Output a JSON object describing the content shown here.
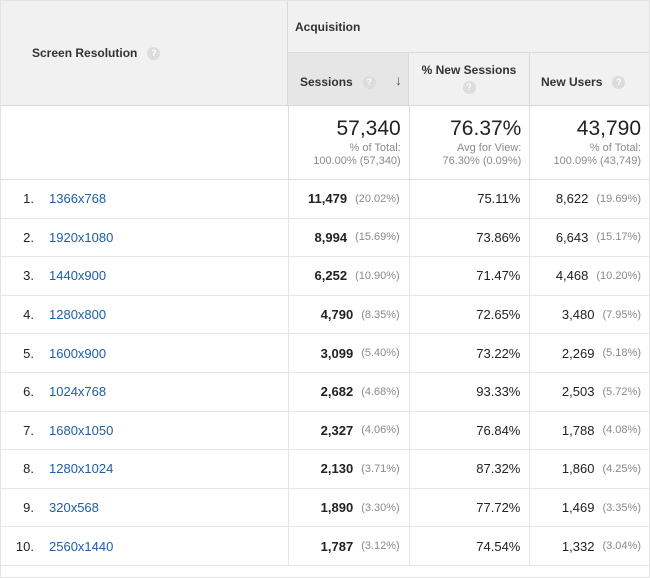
{
  "header": {
    "dimension_label": "Screen Resolution",
    "group_label": "Acquisition",
    "columns": {
      "sessions": "Sessions",
      "new_sessions": "% New Sessions",
      "new_users": "New Users"
    },
    "help_glyph": "?",
    "sort_glyph": "↓"
  },
  "icons": {
    "help": "help-icon",
    "sort": "sort-descending-icon"
  },
  "colors": {
    "link": "#1a5fa8",
    "header_bg": "#f1f1f1",
    "sorted_column_bg": "#e6e6e6",
    "muted_text": "#8a8a8a"
  },
  "totals": {
    "sessions": {
      "value": "57,340",
      "label": "% of Total:",
      "detail": "100.00% (57,340)"
    },
    "new_sessions": {
      "value": "76.37%",
      "label": "Avg for View:",
      "detail": "76.30% (0.09%)"
    },
    "new_users": {
      "value": "43,790",
      "label": "% of Total:",
      "detail": "100.09% (43,749)"
    }
  },
  "rows": [
    {
      "index": "1.",
      "resolution": "1366x768",
      "sessions": "11,479",
      "sessions_pct": "(20.02%)",
      "new_sessions": "75.11%",
      "new_users": "8,622",
      "new_users_pct": "(19.69%)"
    },
    {
      "index": "2.",
      "resolution": "1920x1080",
      "sessions": "8,994",
      "sessions_pct": "(15.69%)",
      "new_sessions": "73.86%",
      "new_users": "6,643",
      "new_users_pct": "(15.17%)"
    },
    {
      "index": "3.",
      "resolution": "1440x900",
      "sessions": "6,252",
      "sessions_pct": "(10.90%)",
      "new_sessions": "71.47%",
      "new_users": "4,468",
      "new_users_pct": "(10.20%)"
    },
    {
      "index": "4.",
      "resolution": "1280x800",
      "sessions": "4,790",
      "sessions_pct": "(8.35%)",
      "new_sessions": "72.65%",
      "new_users": "3,480",
      "new_users_pct": "(7.95%)"
    },
    {
      "index": "5.",
      "resolution": "1600x900",
      "sessions": "3,099",
      "sessions_pct": "(5.40%)",
      "new_sessions": "73.22%",
      "new_users": "2,269",
      "new_users_pct": "(5.18%)"
    },
    {
      "index": "6.",
      "resolution": "1024x768",
      "sessions": "2,682",
      "sessions_pct": "(4.68%)",
      "new_sessions": "93.33%",
      "new_users": "2,503",
      "new_users_pct": "(5.72%)"
    },
    {
      "index": "7.",
      "resolution": "1680x1050",
      "sessions": "2,327",
      "sessions_pct": "(4.06%)",
      "new_sessions": "76.84%",
      "new_users": "1,788",
      "new_users_pct": "(4.08%)"
    },
    {
      "index": "8.",
      "resolution": "1280x1024",
      "sessions": "2,130",
      "sessions_pct": "(3.71%)",
      "new_sessions": "87.32%",
      "new_users": "1,860",
      "new_users_pct": "(4.25%)"
    },
    {
      "index": "9.",
      "resolution": "320x568",
      "sessions": "1,890",
      "sessions_pct": "(3.30%)",
      "new_sessions": "77.72%",
      "new_users": "1,469",
      "new_users_pct": "(3.35%)"
    },
    {
      "index": "10.",
      "resolution": "2560x1440",
      "sessions": "1,787",
      "sessions_pct": "(3.12%)",
      "new_sessions": "74.54%",
      "new_users": "1,332",
      "new_users_pct": "(3.04%)"
    }
  ]
}
